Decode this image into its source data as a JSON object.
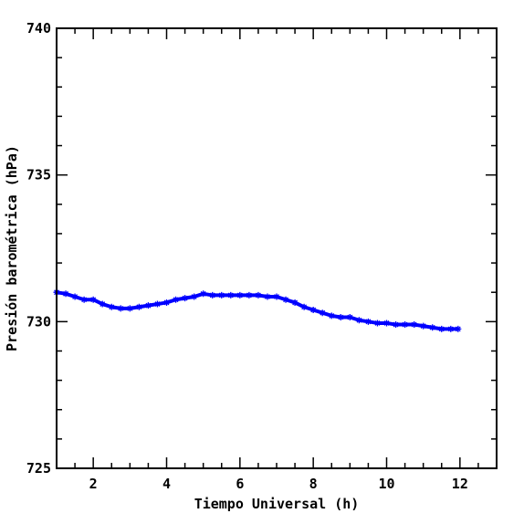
{
  "chart_data": {
    "type": "line",
    "title": "",
    "xlabel": "Tiempo Universal (h)",
    "ylabel": "Presión barométrica (hPa)",
    "xlim": [
      1,
      13
    ],
    "ylim": [
      725,
      740
    ],
    "x_major_ticks": [
      2,
      4,
      6,
      8,
      10,
      12
    ],
    "y_major_ticks": [
      725,
      730,
      735,
      740
    ],
    "x_minor_step": 0.5,
    "y_minor_step": 1,
    "grid": false,
    "legend": "none",
    "series_color": "#0000ff",
    "marker": "asterisk",
    "series": [
      {
        "x": [
          1.0,
          1.25,
          1.5,
          1.75,
          2.0,
          2.25,
          2.5,
          2.75,
          3.0,
          3.25,
          3.5,
          3.75,
          4.0,
          4.25,
          4.5,
          4.75,
          5.0,
          5.25,
          5.5,
          5.75,
          6.0,
          6.25,
          6.5,
          6.75,
          7.0,
          7.25,
          7.5,
          7.75,
          8.0,
          8.25,
          8.5,
          8.75,
          9.0,
          9.25,
          9.5,
          9.75,
          10.0,
          10.25,
          10.5,
          10.75,
          11.0,
          11.25,
          11.5,
          11.75,
          11.95
        ],
        "y": [
          731.0,
          730.95,
          730.85,
          730.75,
          730.75,
          730.6,
          730.5,
          730.45,
          730.45,
          730.5,
          730.55,
          730.6,
          730.65,
          730.75,
          730.8,
          730.85,
          730.95,
          730.9,
          730.9,
          730.9,
          730.9,
          730.9,
          730.9,
          730.85,
          730.85,
          730.75,
          730.65,
          730.5,
          730.4,
          730.3,
          730.2,
          730.15,
          730.15,
          730.05,
          730.0,
          729.95,
          729.95,
          729.9,
          729.9,
          729.9,
          729.85,
          729.8,
          729.75,
          729.75,
          729.75
        ]
      }
    ]
  }
}
